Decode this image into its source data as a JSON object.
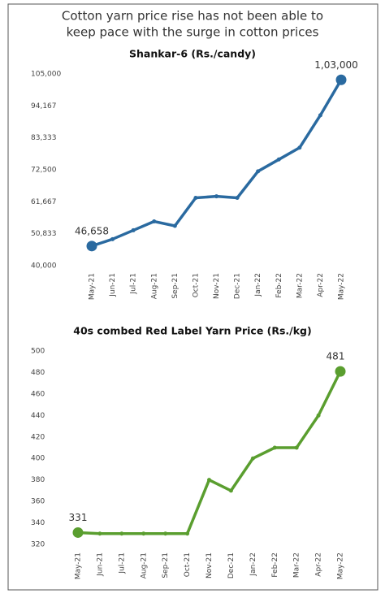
{
  "title": "Cotton yarn price rise has not been able to keep pace with the surge in cotton prices",
  "chart_data": [
    {
      "type": "line",
      "title": "Shankar-6 (Rs./candy)",
      "categories": [
        "May-21",
        "Jun-21",
        "Jul-21",
        "Aug-21",
        "Sep-21",
        "Oct-21",
        "Nov-21",
        "Dec-21",
        "Jan-22",
        "Feb-22",
        "Mar-22",
        "Apr-22",
        "May-22"
      ],
      "series": [
        {
          "color": "#2a6aa0",
          "values": [
            46658,
            49000,
            52000,
            55000,
            53500,
            63000,
            63500,
            63000,
            72000,
            76000,
            80000,
            91000,
            103000
          ],
          "value_labels": [
            "46,658",
            null,
            null,
            null,
            null,
            null,
            null,
            null,
            null,
            null,
            null,
            null,
            "1,03,000"
          ]
        }
      ],
      "ylim": [
        40000,
        105000
      ],
      "yticks": [
        {
          "value": 40000,
          "label": "40,000"
        },
        {
          "value": 50833,
          "label": "50,833"
        },
        {
          "value": 61667,
          "label": "61,667"
        },
        {
          "value": 72500,
          "label": "72,500"
        },
        {
          "value": 83333,
          "label": "83,333"
        },
        {
          "value": 94167,
          "label": "94,167"
        },
        {
          "value": 105000,
          "label": "105,000"
        }
      ],
      "grid": false
    },
    {
      "type": "line",
      "title": "40s combed Red Label Yarn Price (Rs./kg)",
      "categories": [
        "May-21",
        "Jun-21",
        "Jul-21",
        "Aug-21",
        "Sep-21",
        "Oct-21",
        "Nov-21",
        "Dec-21",
        "Jan-22",
        "Feb-22",
        "Mar-22",
        "Apr-22",
        "May-22"
      ],
      "series": [
        {
          "color": "#5a9e2f",
          "values": [
            331,
            330,
            330,
            330,
            330,
            330,
            380,
            370,
            400,
            410,
            410,
            440,
            481
          ],
          "value_labels": [
            "331",
            null,
            null,
            null,
            null,
            null,
            null,
            null,
            null,
            null,
            null,
            null,
            "481"
          ]
        }
      ],
      "ylim": [
        320,
        500
      ],
      "yticks": [
        320,
        340,
        360,
        380,
        400,
        420,
        440,
        460,
        480,
        500
      ],
      "grid": false
    }
  ]
}
